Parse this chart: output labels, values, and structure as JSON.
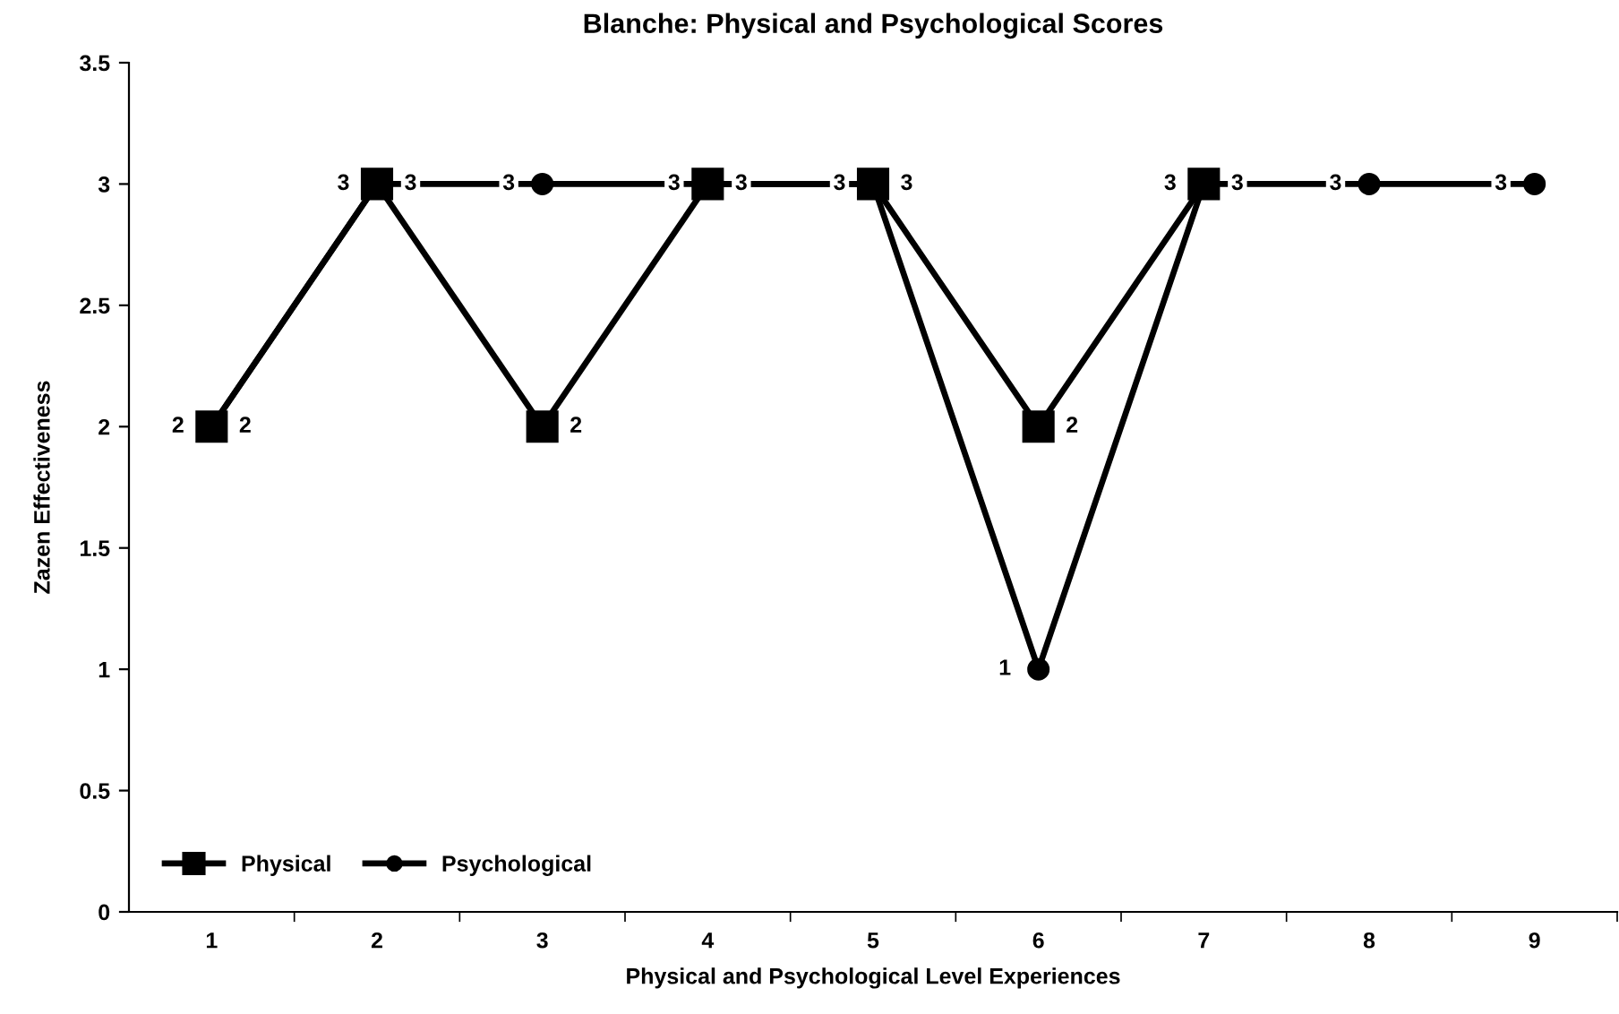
{
  "chart_data": {
    "type": "line",
    "title": "Blanche: Physical and Psychological Scores",
    "xlabel": "Physical and Psychological Level Experiences",
    "ylabel": "Zazen Effectiveness",
    "categories": [
      "1",
      "2",
      "3",
      "4",
      "5",
      "6",
      "7",
      "8",
      "9"
    ],
    "series": [
      {
        "name": "Physical",
        "color": "#000000",
        "marker": "square",
        "values": [
          2,
          3,
          2,
          3,
          3,
          2,
          3,
          null,
          null
        ]
      },
      {
        "name": "Psychological",
        "color": "#000000",
        "marker": "circle",
        "values": [
          2,
          3,
          3,
          3,
          3,
          1,
          3,
          3,
          3
        ]
      }
    ],
    "ylim": [
      0,
      3.5
    ],
    "yticks": [
      0,
      0.5,
      1,
      1.5,
      2,
      2.5,
      3,
      3.5
    ],
    "legend": "bottom left",
    "data_labels": true
  }
}
